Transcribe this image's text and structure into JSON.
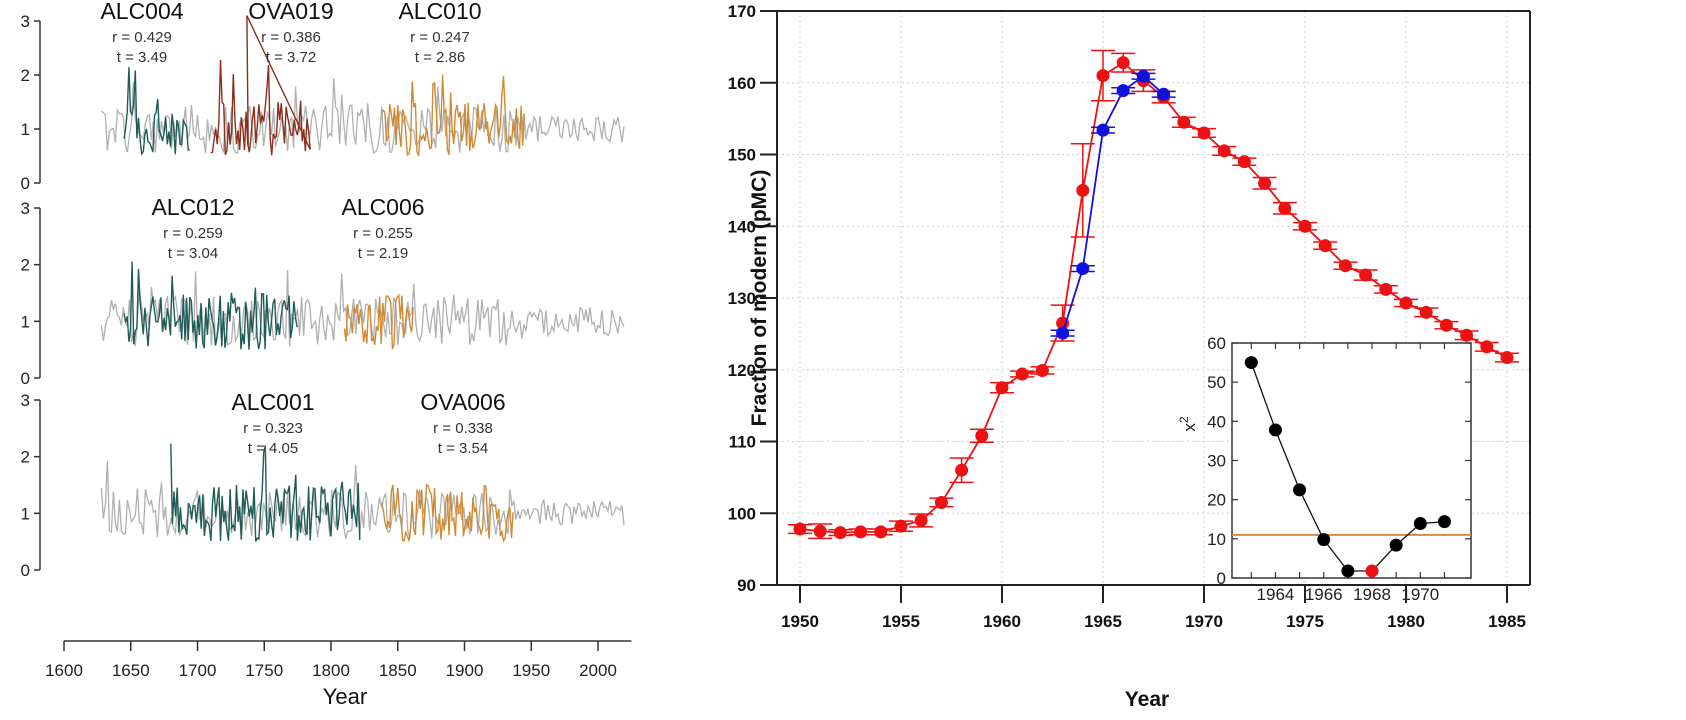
{
  "chart_data": [
    {
      "type": "line",
      "title": "",
      "xlabel": "Year",
      "ylabel": "",
      "xlim": [
        1600,
        2025
      ],
      "x_ticks": [
        "1600",
        "1650",
        "1700",
        "1750",
        "1800",
        "1850",
        "1900",
        "1950",
        "2000"
      ],
      "panels": [
        {
          "ylim": [
            0,
            3
          ],
          "y_ticks": [
            "0",
            "1",
            "2",
            "3"
          ],
          "series": [
            {
              "name": "ALC004",
              "r_label": "r = 0.429",
              "t_label": "t = 3.49",
              "color": "#1f5c55",
              "x_range": [
                1645,
                1695
              ]
            },
            {
              "name": "OVA019",
              "r_label": "r = 0.386",
              "t_label": "t = 3.72",
              "color": "#8b2f1c",
              "x_range": [
                1710,
                1785
              ]
            },
            {
              "name": "ALC010",
              "r_label": "r = 0.247",
              "t_label": "t = 2.86",
              "color": "#d08a35",
              "x_range": [
                1838,
                1945
              ]
            }
          ],
          "reference_color": "#b0b0b0",
          "reference_range": [
            1628,
            2020
          ]
        },
        {
          "ylim": [
            0,
            3
          ],
          "y_ticks": [
            "0",
            "1",
            "2",
            "3"
          ],
          "series": [
            {
              "name": "ALC012",
              "r_label": "r = 0.259",
              "t_label": "t = 3.04",
              "color": "#1f5c55",
              "x_range": [
                1645,
                1775
              ]
            },
            {
              "name": "ALC006",
              "r_label": "r = 0.255",
              "t_label": "t = 2.19",
              "color": "#d08a35",
              "x_range": [
                1810,
                1862
              ]
            }
          ],
          "reference_color": "#b0b0b0",
          "reference_range": [
            1628,
            2020
          ]
        },
        {
          "ylim": [
            0,
            3
          ],
          "y_ticks": [
            "0",
            "1",
            "2",
            "3"
          ],
          "series": [
            {
              "name": "ALC001",
              "r_label": "r = 0.323",
              "t_label": "t = 4.05",
              "color": "#1f5c55",
              "x_range": [
                1680,
                1822
              ]
            },
            {
              "name": "OVA006",
              "r_label": "r = 0.338",
              "t_label": "t = 3.54",
              "color": "#d08a35",
              "x_range": [
                1838,
                1937
              ]
            }
          ],
          "reference_color": "#b0b0b0",
          "reference_range": [
            1628,
            2020
          ]
        }
      ]
    },
    {
      "type": "line",
      "title": "",
      "xlabel": "Year",
      "ylabel": "Fraction of modern (pMC)",
      "xlim": [
        1949,
        1986
      ],
      "ylim": [
        90,
        170
      ],
      "grid": true,
      "x_ticks": [
        "1950",
        "1955",
        "1960",
        "1965",
        "1970",
        "1975",
        "1980",
        "1985"
      ],
      "y_ticks": [
        "90",
        "100",
        "110",
        "120",
        "130",
        "140",
        "150",
        "160",
        "170"
      ],
      "series": [
        {
          "name": "red",
          "color": "#ee1111",
          "x": [
            1950,
            1951,
            1952,
            1953,
            1954,
            1955,
            1956,
            1957,
            1958,
            1959,
            1960,
            1961,
            1962,
            1963,
            1964,
            1965,
            1966,
            1967,
            1968,
            1969,
            1970,
            1971,
            1972,
            1973,
            1974,
            1975,
            1976,
            1977,
            1978,
            1979,
            1980,
            1981,
            1982,
            1983,
            1984,
            1985
          ],
          "y": [
            97.8,
            97.5,
            97.3,
            97.4,
            97.4,
            98.2,
            99.0,
            101.5,
            106.0,
            110.8,
            117.5,
            119.4,
            119.9,
            126.5,
            145.0,
            161.0,
            162.8,
            160.3,
            158.0,
            154.5,
            153.0,
            150.5,
            149.0,
            146.0,
            142.5,
            140.0,
            137.3,
            134.5,
            133.2,
            131.2,
            129.3,
            128.0,
            126.2,
            124.8,
            123.2,
            121.7
          ],
          "err": [
            0.6,
            1.0,
            0.4,
            0.4,
            0.4,
            0.7,
            0.9,
            0.6,
            1.7,
            0.9,
            0.7,
            0.4,
            0.5,
            2.5,
            6.5,
            3.5,
            1.3,
            1.5,
            0.8,
            0.7,
            0.6,
            0.6,
            0.5,
            0.8,
            0.8,
            0.5,
            0.5,
            0.5,
            0.7,
            0.5,
            0.5,
            0.6,
            0.5,
            0.6,
            0.6,
            0.6
          ]
        },
        {
          "name": "blue",
          "color": "#1010e0",
          "x": [
            1963,
            1964,
            1965,
            1966,
            1967,
            1968
          ],
          "y": [
            125.1,
            134.1,
            153.4,
            158.9,
            160.9,
            158.4
          ],
          "err": [
            0.4,
            0.4,
            0.4,
            0.4,
            0.4,
            0.4
          ]
        }
      ],
      "inset": {
        "type": "line",
        "ylabel": "x²",
        "ylabel_base": "x",
        "ylabel_sup": "2",
        "xlim": [
          1962.2,
          1972.1
        ],
        "ylim": [
          0,
          60
        ],
        "x_ticks": [
          "1964",
          "1966",
          "1968",
          "1970"
        ],
        "y_ticks": [
          "0",
          "10",
          "20",
          "30",
          "40",
          "50",
          "60"
        ],
        "x": [
          1963,
          1964,
          1965,
          1966,
          1967,
          1968,
          1969,
          1970,
          1971
        ],
        "y": [
          55,
          37.8,
          22.5,
          9.8,
          1.8,
          1.8,
          8.4,
          13.9,
          14.4
        ],
        "highlight_index": 5,
        "point_color": "#000000",
        "highlight_color": "#ee1111",
        "threshold": 11,
        "threshold_color": "#d4894a"
      }
    }
  ]
}
